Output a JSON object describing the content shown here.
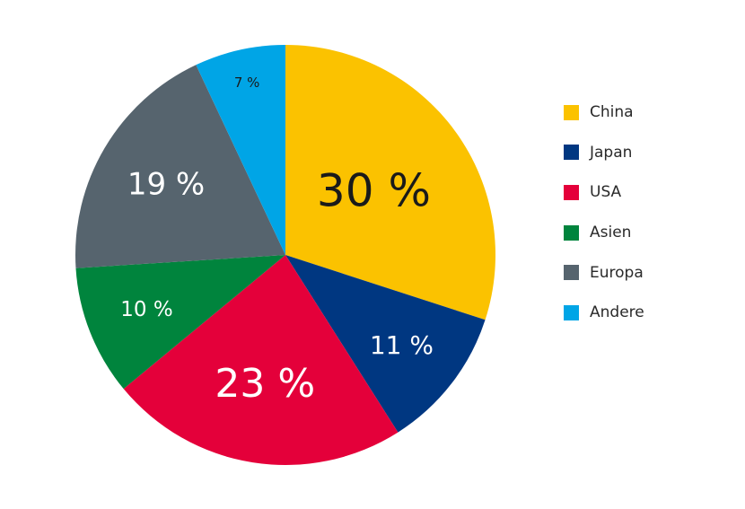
{
  "chart_data": {
    "type": "pie",
    "title": "",
    "slices": [
      {
        "name": "China",
        "value": 30,
        "label": "30 %",
        "color": "#FBC200",
        "text_color": "#1a1a1a"
      },
      {
        "name": "Japan",
        "value": 11,
        "label": "11 %",
        "color": "#003781",
        "text_color": "#ffffff"
      },
      {
        "name": "USA",
        "value": 23,
        "label": "23 %",
        "color": "#E4003A",
        "text_color": "#ffffff"
      },
      {
        "name": "Asien",
        "value": 10,
        "label": "10 %",
        "color": "#00843D",
        "text_color": "#ffffff"
      },
      {
        "name": "Europa",
        "value": 19,
        "label": "19 %",
        "color": "#56646E",
        "text_color": "#ffffff"
      },
      {
        "name": "Andere",
        "value": 7,
        "label": "7 %",
        "color": "#00A5E6",
        "text_color": "#1a1a1a"
      }
    ],
    "legend_position": "right"
  }
}
